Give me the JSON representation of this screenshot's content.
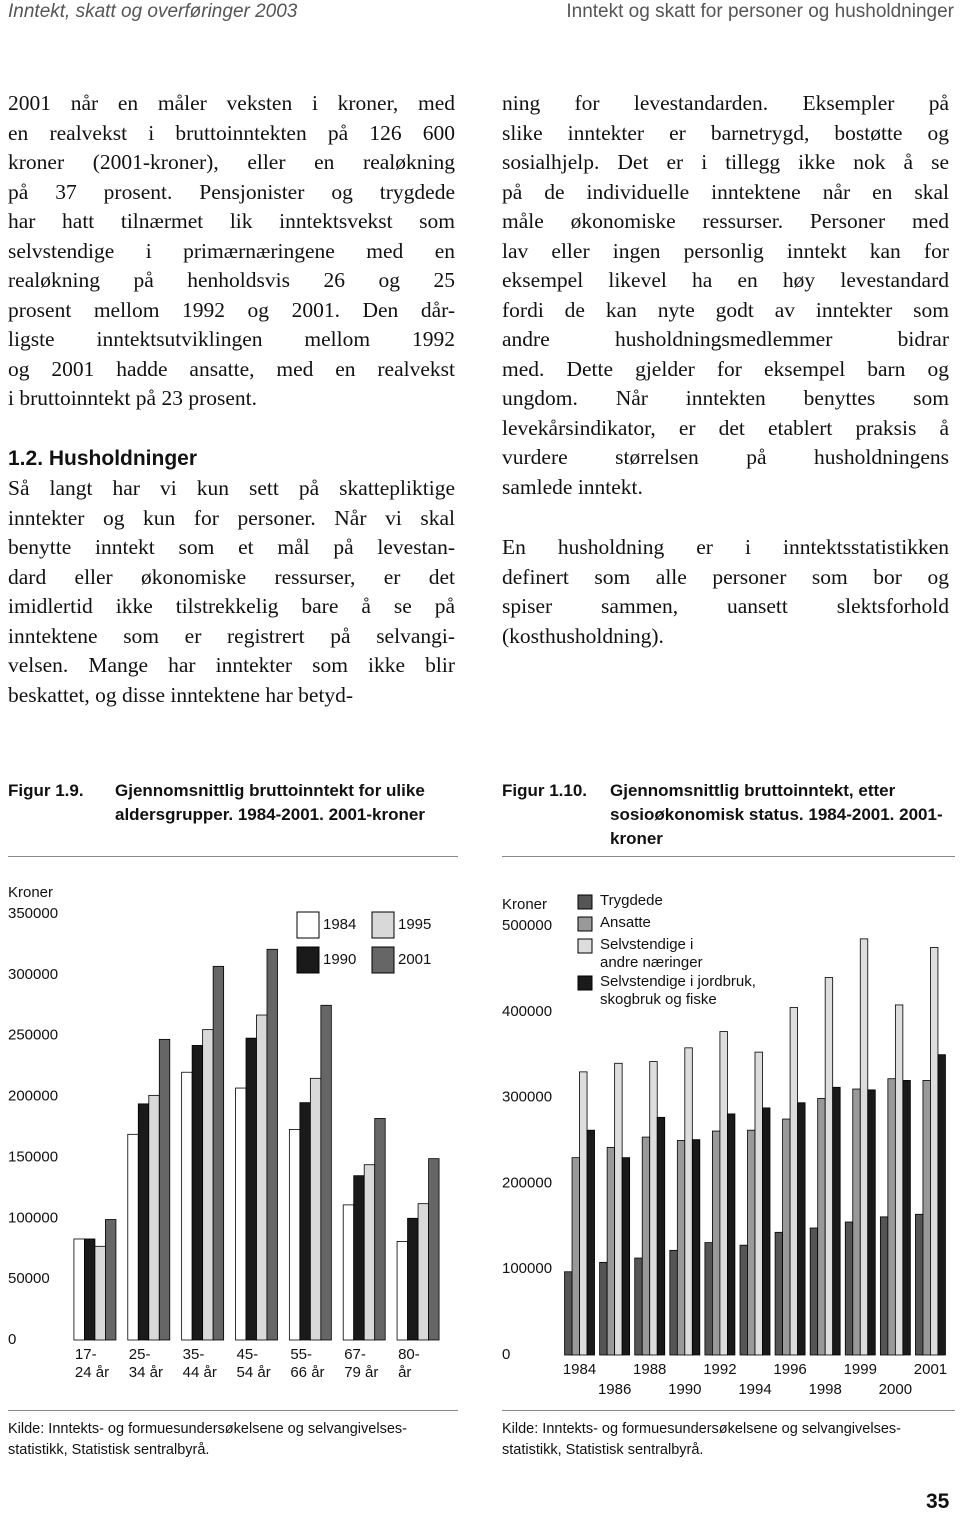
{
  "header": {
    "left": "Inntekt, skatt og overføringer 2003",
    "right": "Inntekt og skatt for personer og husholdninger"
  },
  "left_column": {
    "paragraph_1": [
      "2001 når en måler veksten i kroner, med",
      "en realvekst i bruttoinntekten på 126 600",
      "kroner (2001-kroner), eller en realøkning",
      "på 37 prosent. Pensjonister og trygdede",
      "har hatt tilnærmet lik inntektsvekst som",
      "selvstendige i primærnæringene med en",
      "realøkning på henholdsvis 26 og 25",
      "prosent mellom 1992 og 2001. Den dår-",
      "ligste inntektsutviklingen mellom 1992",
      "og 2001 hadde ansatte, med en realvekst",
      "i bruttoinntekt på 23 prosent."
    ],
    "heading": "1.2. Husholdninger",
    "paragraph_2": [
      "Så langt har vi kun sett på skattepliktige",
      "inntekter og kun for personer. Når vi skal",
      "benytte inntekt som et mål på levestan-",
      "dard eller økonomiske ressurser, er det",
      "imidlertid ikke tilstrekkelig bare å se på",
      "inntektene som er registrert på selvangi-",
      "velsen. Mange har inntekter som ikke blir",
      "beskattet, og disse inntektene har betyd-"
    ]
  },
  "right_column": {
    "paragraph_1": [
      "ning for levestandarden. Eksempler på",
      "slike inntekter er barnetrygd, bostøtte og",
      "sosialhjelp. Det er i tillegg ikke nok å se",
      "på de individuelle inntektene når en skal",
      "måle økonomiske ressurser. Personer med",
      "lav eller ingen personlig inntekt kan for",
      "eksempel likevel ha en høy levestandard",
      "fordi de kan nyte godt av inntekter som",
      "andre husholdningsmedlemmer bidrar",
      "med. Dette gjelder for eksempel barn og",
      "ungdom. Når inntekten benyttes som",
      "levekårsindikator, er det etablert praksis å",
      "vurdere størrelsen på husholdningens",
      "samlede inntekt."
    ],
    "paragraph_2": [
      "En husholdning er i inntektsstatistikken",
      "definert som alle personer som bor og",
      "spiser sammen, uansett slektsforhold",
      "(kosthusholdning)."
    ]
  },
  "chart_data": [
    {
      "type": "bar",
      "label": "Figur 1.9.",
      "title": "Gjennomsnittlig bruttoinntekt for ulike aldersgrupper. 1984-2001. 2001-kroner",
      "y_label": "Kroner",
      "categories": [
        "17-24 år",
        "25-34 år",
        "35-44 år",
        "45-54 år",
        "55-66 år",
        "67-79 år",
        "80- år"
      ],
      "series": [
        {
          "name": "1984",
          "color": "#ffffff",
          "values": [
            83000,
            169000,
            220000,
            207000,
            173000,
            111000,
            81000
          ]
        },
        {
          "name": "1990",
          "color": "#1a1a1a",
          "values": [
            83000,
            194000,
            242000,
            248000,
            195000,
            135000,
            100000
          ]
        },
        {
          "name": "1995",
          "color": "#d9d9d9",
          "values": [
            77000,
            201000,
            255000,
            267000,
            215000,
            144000,
            112000
          ]
        },
        {
          "name": "2001",
          "color": "#666666",
          "values": [
            99000,
            247000,
            307000,
            321000,
            275000,
            182000,
            149000
          ]
        }
      ],
      "ylim": [
        0,
        350000
      ],
      "yticks": [
        0,
        50000,
        100000,
        150000,
        200000,
        250000,
        300000,
        350000
      ],
      "grid": false,
      "legend": "top-right",
      "source": [
        "Kilde: Inntekts- og formuesundersøkelsene og selvangivelses-",
        "statistikk, Statistisk sentralbyrå."
      ]
    },
    {
      "type": "bar",
      "label": "Figur 1.10.",
      "title": "Gjennomsnittlig bruttoinntekt, etter sosioøkonomisk status. 1984-2001. 2001-kroner",
      "y_label": "Kroner",
      "categories": [
        "1984",
        "1986",
        "1988",
        "1990",
        "1992",
        "1994",
        "1996",
        "1998",
        "1999",
        "2000",
        "2001"
      ],
      "series": [
        {
          "name": "Trygdede",
          "color": "#555555",
          "values": [
            97000,
            108000,
            113000,
            122000,
            131000,
            128000,
            143000,
            148000,
            155000,
            161000,
            164000
          ]
        },
        {
          "name": "Ansatte",
          "color": "#999999",
          "values": [
            230000,
            242000,
            254000,
            250000,
            261000,
            262000,
            275000,
            299000,
            310000,
            322000,
            320000
          ]
        },
        {
          "name": "Selvstendige i andre næringer",
          "color": "#dddddd",
          "values": [
            330000,
            340000,
            342000,
            358000,
            377000,
            353000,
            405000,
            440000,
            485000,
            408000,
            475000
          ]
        },
        {
          "name": "Selvstendige i jordbruk, skogbruk og fiske",
          "color": "#1a1a1a",
          "values": [
            262000,
            230000,
            277000,
            251000,
            281000,
            288000,
            294000,
            312000,
            309000,
            320000,
            350000
          ]
        }
      ],
      "ylim": [
        0,
        500000
      ],
      "yticks": [
        0,
        100000,
        200000,
        300000,
        400000,
        500000
      ],
      "grid": false,
      "legend": "top-left",
      "source": [
        "Kilde: Inntekts- og formuesundersøkelsene og selvangivelses-",
        "statistikk, Statistisk sentralbyrå."
      ]
    }
  ],
  "page_number": "35"
}
